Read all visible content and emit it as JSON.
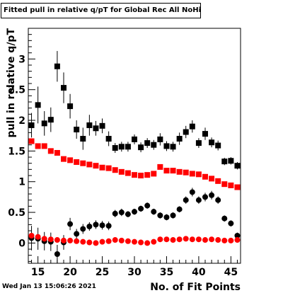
{
  "chart_data": {
    "type": "scatter",
    "title": "Fitted pull in relative q/pT for Global Rec All NoHits",
    "xlabel": "No. of Fit Points",
    "ylabel": "pull in relative q/pT",
    "xlim": [
      13.5,
      46.5
    ],
    "ylim": [
      -0.33,
      3.5
    ],
    "xticks": [
      15,
      20,
      25,
      30,
      35,
      40,
      45
    ],
    "xtick_labels": [
      "15",
      "20",
      "25",
      "30",
      "35",
      "40",
      "45"
    ],
    "yticks": [
      0,
      0.5,
      1,
      1.5,
      2,
      2.5,
      3
    ],
    "ytick_labels": [
      "0",
      "0.5",
      "1",
      "1.5",
      "2",
      "2.5",
      "3"
    ],
    "grid": false,
    "series": [
      {
        "marker": "square",
        "color": "#000000",
        "x": [
          14,
          15,
          16,
          17,
          18,
          19,
          20,
          21,
          22,
          23,
          24,
          25,
          26,
          27,
          28,
          29,
          30,
          31,
          32,
          33,
          34,
          35,
          36,
          37,
          38,
          39,
          40,
          41,
          42,
          43,
          44,
          45,
          46
        ],
        "y": [
          1.92,
          2.25,
          1.95,
          2.01,
          2.88,
          2.53,
          2.23,
          1.85,
          1.7,
          1.92,
          1.87,
          1.91,
          1.7,
          1.55,
          1.57,
          1.57,
          1.69,
          1.56,
          1.63,
          1.6,
          1.69,
          1.58,
          1.57,
          1.7,
          1.81,
          1.9,
          1.63,
          1.78,
          1.64,
          1.59,
          1.33,
          1.34,
          1.26
        ],
        "err": [
          0.2,
          0.3,
          0.2,
          0.2,
          0.25,
          0.25,
          0.2,
          0.15,
          0.18,
          0.17,
          0.12,
          0.12,
          0.12,
          0.08,
          0.08,
          0.08,
          0.08,
          0.08,
          0.08,
          0.08,
          0.1,
          0.08,
          0.08,
          0.1,
          0.1,
          0.1,
          0.08,
          0.1,
          0.08,
          0.08,
          0.06,
          0.06,
          0.06
        ]
      },
      {
        "marker": "square",
        "color": "#ff0000",
        "x": [
          14,
          15,
          16,
          17,
          18,
          19,
          20,
          21,
          22,
          23,
          24,
          25,
          26,
          27,
          28,
          29,
          30,
          31,
          32,
          33,
          34,
          35,
          36,
          37,
          38,
          39,
          40,
          41,
          42,
          43,
          44,
          45,
          46
        ],
        "y": [
          1.66,
          1.58,
          1.58,
          1.5,
          1.47,
          1.37,
          1.35,
          1.32,
          1.3,
          1.28,
          1.26,
          1.23,
          1.22,
          1.19,
          1.16,
          1.14,
          1.11,
          1.1,
          1.11,
          1.13,
          1.24,
          1.18,
          1.18,
          1.16,
          1.15,
          1.13,
          1.12,
          1.08,
          1.05,
          1.01,
          0.96,
          0.94,
          0.91
        ],
        "err": [
          0.03,
          0.03,
          0.03,
          0.03,
          0.03,
          0.03,
          0.02,
          0.02,
          0.02,
          0.02,
          0.02,
          0.02,
          0.02,
          0.02,
          0.02,
          0.02,
          0.02,
          0.02,
          0.02,
          0.02,
          0.02,
          0.02,
          0.02,
          0.02,
          0.02,
          0.02,
          0.02,
          0.02,
          0.02,
          0.02,
          0.02,
          0.02,
          0.02
        ]
      },
      {
        "marker": "circle",
        "color": "#000000",
        "x": [
          14,
          15,
          16,
          17,
          18,
          19,
          20,
          21,
          22,
          23,
          24,
          25,
          26,
          27,
          28,
          29,
          30,
          31,
          32,
          33,
          34,
          35,
          36,
          37,
          38,
          39,
          40,
          41,
          42,
          43,
          44,
          45,
          46
        ],
        "y": [
          0.08,
          0.07,
          0.03,
          0.02,
          -0.18,
          0.01,
          0.31,
          0.15,
          0.23,
          0.27,
          0.3,
          0.29,
          0.28,
          0.48,
          0.5,
          0.47,
          0.51,
          0.56,
          0.61,
          0.51,
          0.45,
          0.42,
          0.45,
          0.55,
          0.7,
          0.83,
          0.7,
          0.75,
          0.78,
          0.7,
          0.4,
          0.32,
          0.12
        ],
        "err": [
          0.2,
          0.18,
          0.15,
          0.15,
          0.15,
          0.12,
          0.1,
          0.08,
          0.08,
          0.07,
          0.07,
          0.07,
          0.07,
          0.06,
          0.06,
          0.05,
          0.05,
          0.05,
          0.05,
          0.05,
          0.05,
          0.05,
          0.05,
          0.05,
          0.06,
          0.07,
          0.06,
          0.07,
          0.07,
          0.06,
          0.05,
          0.05,
          0.05
        ]
      },
      {
        "marker": "circle",
        "color": "#ff0000",
        "x": [
          14,
          15,
          16,
          17,
          18,
          19,
          20,
          21,
          22,
          23,
          24,
          25,
          26,
          27,
          28,
          29,
          30,
          31,
          32,
          33,
          34,
          35,
          36,
          37,
          38,
          39,
          40,
          41,
          42,
          43,
          44,
          45,
          46
        ],
        "y": [
          0.12,
          0.1,
          0.07,
          0.06,
          0.05,
          0.04,
          0.04,
          0.03,
          0.02,
          0.01,
          0.0,
          0.02,
          0.03,
          0.05,
          0.04,
          0.03,
          0.02,
          0.01,
          0.0,
          0.02,
          0.06,
          0.06,
          0.05,
          0.06,
          0.07,
          0.06,
          0.06,
          0.05,
          0.06,
          0.05,
          0.04,
          0.04,
          0.05
        ],
        "err": [
          0.02,
          0.02,
          0.02,
          0.02,
          0.02,
          0.02,
          0.02,
          0.02,
          0.02,
          0.02,
          0.02,
          0.02,
          0.02,
          0.02,
          0.02,
          0.02,
          0.02,
          0.02,
          0.02,
          0.02,
          0.02,
          0.02,
          0.02,
          0.02,
          0.02,
          0.02,
          0.02,
          0.02,
          0.02,
          0.02,
          0.02,
          0.02,
          0.02
        ]
      }
    ]
  },
  "footer": {
    "timestamp": "Wed Jan 13 15:06:26 2021"
  }
}
